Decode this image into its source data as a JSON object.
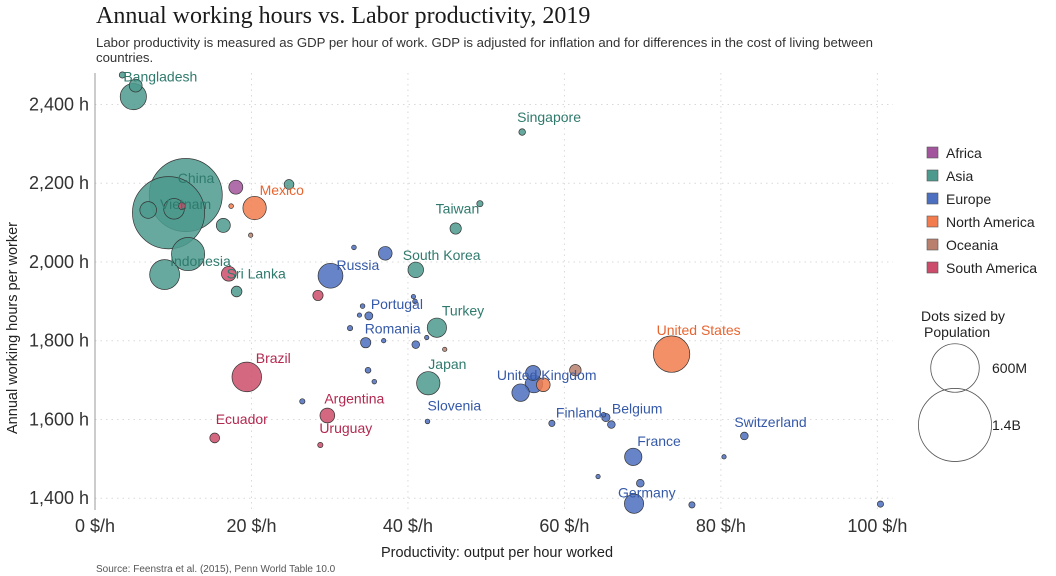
{
  "chart_data": {
    "type": "scatter",
    "title": "Annual working hours vs. Labor productivity, 2019",
    "subtitle": "Labor productivity is measured as GDP per hour of work. GDP is adjusted for inflation and for differences in the cost of living between countries.",
    "xlabel": "Productivity: output per hour worked",
    "ylabel": "Annual working hours per worker",
    "source": "Source: Feenstra et al. (2015), Penn World Table 10.0",
    "xlim": [
      0,
      102
    ],
    "ylim": [
      1370,
      2480
    ],
    "x_ticks": [
      0,
      20,
      40,
      60,
      80,
      100
    ],
    "x_tick_labels": [
      "0 $/h",
      "20 $/h",
      "40 $/h",
      "60 $/h",
      "80 $/h",
      "100 $/h"
    ],
    "y_ticks": [
      1400,
      1600,
      1800,
      2000,
      2200,
      2400
    ],
    "y_tick_labels": [
      "1,400 h",
      "1,600 h",
      "1,800 h",
      "2,000 h",
      "2,200 h",
      "2,400 h"
    ],
    "grid": true,
    "size_legend": {
      "title": "Dots sized by Population",
      "title_line1": "Dots sized by",
      "title_line2": "Population",
      "items": [
        {
          "label": "600M",
          "population": 600
        },
        {
          "label": "1.4B",
          "population": 1400
        }
      ]
    },
    "legend": {
      "position": "right",
      "entries": [
        {
          "name": "Africa",
          "color": "#a2559c"
        },
        {
          "name": "Asia",
          "color": "#4c9a8d"
        },
        {
          "name": "Europe",
          "color": "#4c6fbf"
        },
        {
          "name": "North America",
          "color": "#f27c4e"
        },
        {
          "name": "Oceania",
          "color": "#b8806d"
        },
        {
          "name": "South America",
          "color": "#cc4d6b"
        }
      ]
    },
    "points": [
      {
        "label": "Bangladesh",
        "region": "Asia",
        "x": 4.9,
        "y": 2420,
        "population": 163
      },
      {
        "label": "",
        "region": "Asia",
        "x": 3.5,
        "y": 2475,
        "population": 5
      },
      {
        "label": "",
        "region": "Asia",
        "x": 5.2,
        "y": 2448,
        "population": 33
      },
      {
        "label": "China",
        "region": "Asia",
        "x": 11.6,
        "y": 2170,
        "population": 1400
      },
      {
        "label": "Vietnam",
        "region": "Asia",
        "x": 10.1,
        "y": 2135,
        "population": 96
      },
      {
        "label": "",
        "region": "Asia",
        "x": 9.4,
        "y": 2125,
        "population": 1366
      },
      {
        "label": "",
        "region": "Asia",
        "x": 6.8,
        "y": 2132,
        "population": 60
      },
      {
        "label": "",
        "region": "South America",
        "x": 11.1,
        "y": 2142,
        "population": 7
      },
      {
        "label": "",
        "region": "Africa",
        "x": 18.0,
        "y": 2190,
        "population": 40
      },
      {
        "label": "",
        "region": "Asia",
        "x": 24.8,
        "y": 2197,
        "population": 17
      },
      {
        "label": "",
        "region": "Asia",
        "x": 16.4,
        "y": 2093,
        "population": 40
      },
      {
        "label": "Indonesia",
        "region": "Asia",
        "x": 11.9,
        "y": 2020,
        "population": 270
      },
      {
        "label": "",
        "region": "Asia",
        "x": 8.9,
        "y": 1968,
        "population": 216
      },
      {
        "label": "Mexico",
        "region": "North America",
        "x": 20.4,
        "y": 2137,
        "population": 127
      },
      {
        "label": "",
        "region": "North America",
        "x": 17.4,
        "y": 2142,
        "population": 2
      },
      {
        "label": "",
        "region": "Oceania",
        "x": 19.9,
        "y": 2068,
        "population": 1
      },
      {
        "label": "Sri Lanka",
        "region": "Asia",
        "x": 18.1,
        "y": 1925,
        "population": 21
      },
      {
        "label": "",
        "region": "South America",
        "x": 17.1,
        "y": 1970,
        "population": 45
      },
      {
        "label": "Russia",
        "region": "Europe",
        "x": 30.1,
        "y": 1965,
        "population": 145
      },
      {
        "label": "",
        "region": "Europe",
        "x": 33.1,
        "y": 2037,
        "population": 2
      },
      {
        "label": "",
        "region": "Europe",
        "x": 37.1,
        "y": 2022,
        "population": 38
      },
      {
        "label": "South Korea",
        "region": "Asia",
        "x": 41.0,
        "y": 1980,
        "population": 51
      },
      {
        "label": "",
        "region": "South America",
        "x": 28.5,
        "y": 1915,
        "population": 19
      },
      {
        "label": "Portugal",
        "region": "Europe",
        "x": 35.0,
        "y": 1863,
        "population": 10
      },
      {
        "label": "",
        "region": "Europe",
        "x": 34.2,
        "y": 1888,
        "population": 2
      },
      {
        "label": "",
        "region": "Europe",
        "x": 33.8,
        "y": 1865,
        "population": 1
      },
      {
        "label": "",
        "region": "Europe",
        "x": 40.7,
        "y": 1912,
        "population": 1
      },
      {
        "label": "",
        "region": "Europe",
        "x": 40.9,
        "y": 1900,
        "population": 2
      },
      {
        "label": "Romania",
        "region": "Europe",
        "x": 34.6,
        "y": 1795,
        "population": 19
      },
      {
        "label": "",
        "region": "Europe",
        "x": 32.6,
        "y": 1832,
        "population": 3
      },
      {
        "label": "",
        "region": "Europe",
        "x": 36.9,
        "y": 1800,
        "population": 1
      },
      {
        "label": "",
        "region": "Europe",
        "x": 41.0,
        "y": 1790,
        "population": 9
      },
      {
        "label": "",
        "region": "Europe",
        "x": 42.4,
        "y": 1808,
        "population": 1
      },
      {
        "label": "Turkey",
        "region": "Asia",
        "x": 43.7,
        "y": 1833,
        "population": 83
      },
      {
        "label": "",
        "region": "Oceania",
        "x": 44.7,
        "y": 1778,
        "population": 1
      },
      {
        "label": "Taiwan",
        "region": "Asia",
        "x": 46.1,
        "y": 2085,
        "population": 24
      },
      {
        "label": "",
        "region": "Asia",
        "x": 49.2,
        "y": 2148,
        "population": 5
      },
      {
        "label": "Singapore",
        "region": "Asia",
        "x": 54.6,
        "y": 2330,
        "population": 6
      },
      {
        "label": "Japan",
        "region": "Asia",
        "x": 42.6,
        "y": 1692,
        "population": 126
      },
      {
        "label": "",
        "region": "Europe",
        "x": 34.9,
        "y": 1725,
        "population": 4
      },
      {
        "label": "",
        "region": "Europe",
        "x": 35.7,
        "y": 1696,
        "population": 2
      },
      {
        "label": "Slovenia",
        "region": "Europe",
        "x": 42.5,
        "y": 1595,
        "population": 2
      },
      {
        "label": "",
        "region": "Europe",
        "x": 26.5,
        "y": 1646,
        "population": 3
      },
      {
        "label": "Brazil",
        "region": "South America",
        "x": 19.4,
        "y": 1708,
        "population": 211
      },
      {
        "label": "Argentina",
        "region": "South America",
        "x": 29.7,
        "y": 1610,
        "population": 45
      },
      {
        "label": "Uruguay",
        "region": "South America",
        "x": 28.8,
        "y": 1535,
        "population": 3
      },
      {
        "label": "Ecuador",
        "region": "South America",
        "x": 15.3,
        "y": 1553,
        "population": 17
      },
      {
        "label": "United Kingdom",
        "region": "Europe",
        "x": 56.1,
        "y": 1690,
        "population": 67
      },
      {
        "label": "",
        "region": "Europe",
        "x": 56.0,
        "y": 1718,
        "population": 47
      },
      {
        "label": "",
        "region": "Europe",
        "x": 54.4,
        "y": 1668,
        "population": 66
      },
      {
        "label": "",
        "region": "North America",
        "x": 57.3,
        "y": 1688,
        "population": 38
      },
      {
        "label": "",
        "region": "Oceania",
        "x": 61.4,
        "y": 1725,
        "population": 25
      },
      {
        "label": "Finland",
        "region": "Europe",
        "x": 58.4,
        "y": 1590,
        "population": 5
      },
      {
        "label": "Belgium",
        "region": "Europe",
        "x": 65.3,
        "y": 1605,
        "population": 11
      },
      {
        "label": "",
        "region": "Europe",
        "x": 65.0,
        "y": 1612,
        "population": 2
      },
      {
        "label": "",
        "region": "Europe",
        "x": 66.0,
        "y": 1587,
        "population": 9
      },
      {
        "label": "United States",
        "region": "North America",
        "x": 73.7,
        "y": 1766,
        "population": 328
      },
      {
        "label": "Switzerland",
        "region": "Europe",
        "x": 83.0,
        "y": 1558,
        "population": 9
      },
      {
        "label": "France",
        "region": "Europe",
        "x": 68.8,
        "y": 1505,
        "population": 65
      },
      {
        "label": "",
        "region": "Europe",
        "x": 80.4,
        "y": 1505,
        "population": 1
      },
      {
        "label": "",
        "region": "Europe",
        "x": 64.3,
        "y": 1455,
        "population": 1
      },
      {
        "label": "",
        "region": "Europe",
        "x": 69.7,
        "y": 1438,
        "population": 9
      },
      {
        "label": "Germany",
        "region": "Europe",
        "x": 68.9,
        "y": 1386,
        "population": 83
      },
      {
        "label": "",
        "region": "Europe",
        "x": 76.3,
        "y": 1383,
        "population": 5
      },
      {
        "label": "",
        "region": "Europe",
        "x": 100.4,
        "y": 1385,
        "population": 5
      }
    ]
  }
}
